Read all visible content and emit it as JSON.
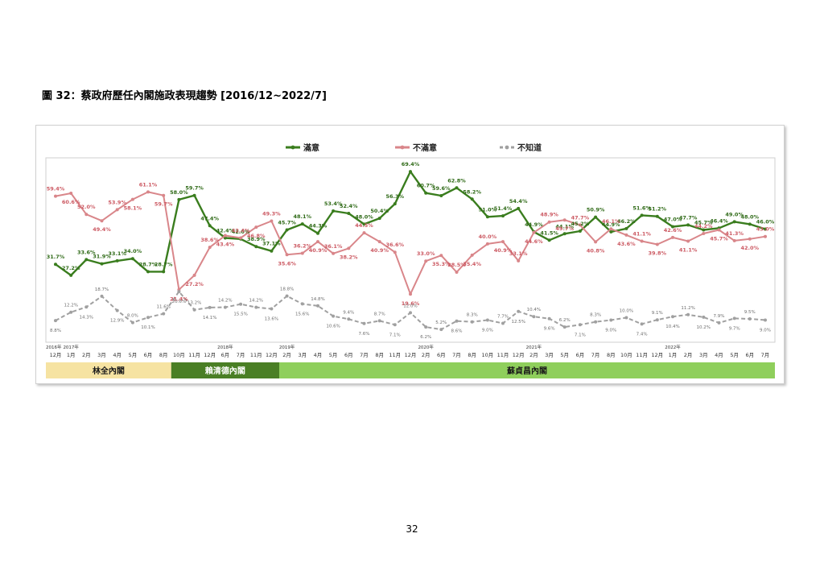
{
  "page_title": "圖 32：蔡政府歷任內閣施政表現趨勢  [2016/12~2022/7]",
  "page_number": "32",
  "colors": {
    "satisfied": "#3a7d1e",
    "dissatisfied": "#d9868a",
    "unknown": "#a0a0a0",
    "cabinet_lin": "#f6e3a2",
    "cabinet_lai": "#4a7f25",
    "cabinet_su": "#8fcf5c"
  },
  "chart_data": {
    "type": "line",
    "legend_position": "top",
    "grid": false,
    "ylim": [
      0,
      75
    ],
    "x": [
      "12月",
      "1月",
      "2月",
      "3月",
      "4月",
      "5月",
      "6月",
      "8月",
      "10月",
      "11月",
      "12月",
      "6月",
      "7月",
      "11月",
      "12月",
      "2月",
      "3月",
      "4月",
      "5月",
      "6月",
      "7月",
      "8月",
      "11月",
      "12月",
      "2月",
      "6月",
      "7月",
      "8月",
      "10月",
      "11月",
      "12月",
      "2月",
      "3月",
      "5月",
      "6月",
      "7月",
      "8月",
      "10月",
      "11月",
      "12月",
      "1月",
      "2月",
      "3月",
      "4月",
      "5月",
      "6月",
      "7月"
    ],
    "year_labels": [
      {
        "index": 0,
        "label": "2016年"
      },
      {
        "index": 1,
        "label": "2017年"
      },
      {
        "index": 11,
        "label": "2018年"
      },
      {
        "index": 15,
        "label": "2019年"
      },
      {
        "index": 24,
        "label": "2020年"
      },
      {
        "index": 31,
        "label": "2021年"
      },
      {
        "index": 40,
        "label": "2022年"
      }
    ],
    "series": [
      {
        "name": "滿意",
        "key": "satisfied",
        "values": [
          31.7,
          27.2,
          33.6,
          31.9,
          33.1,
          34.0,
          28.7,
          28.7,
          58.0,
          59.7,
          47.4,
          42.4,
          42.0,
          38.9,
          37.1,
          45.7,
          48.1,
          44.3,
          53.4,
          52.4,
          48.0,
          50.4,
          56.3,
          69.4,
          60.7,
          59.6,
          62.8,
          58.2,
          51.0,
          51.4,
          54.4,
          44.9,
          41.5,
          44.1,
          45.2,
          50.9,
          44.9,
          46.2,
          51.6,
          51.2,
          47.0,
          47.7,
          45.7,
          46.4,
          49.0,
          48.0,
          46.0
        ]
      },
      {
        "name": "不滿意",
        "key": "dissatisfied",
        "values": [
          59.4,
          60.6,
          52.0,
          49.4,
          53.9,
          58.1,
          61.1,
          59.7,
          21.4,
          27.2,
          38.6,
          43.4,
          42.4,
          46.8,
          49.3,
          35.6,
          36.2,
          40.9,
          36.1,
          38.2,
          44.5,
          40.9,
          36.6,
          19.6,
          33.0,
          35.3,
          28.5,
          35.4,
          40.0,
          40.9,
          33.1,
          44.6,
          48.9,
          49.7,
          47.7,
          40.8,
          46.1,
          43.6,
          41.1,
          39.8,
          42.6,
          41.1,
          44.2,
          45.7,
          41.3,
          42.0,
          43.0
        ]
      },
      {
        "name": "不知道",
        "key": "unknown",
        "values": [
          8.8,
          12.2,
          14.3,
          18.7,
          12.9,
          8.0,
          10.1,
          11.6,
          20.6,
          13.2,
          14.1,
          14.2,
          15.5,
          14.2,
          13.6,
          18.8,
          15.6,
          14.8,
          10.6,
          9.4,
          7.6,
          8.7,
          7.1,
          12.0,
          6.2,
          5.2,
          8.6,
          8.3,
          9.0,
          7.7,
          12.5,
          10.4,
          9.6,
          6.2,
          7.1,
          8.3,
          9.0,
          10.0,
          7.4,
          9.1,
          10.4,
          11.2,
          10.2,
          7.9,
          9.7,
          9.5,
          9.0
        ]
      }
    ],
    "cabinets": [
      {
        "name": "林全內閣",
        "key": "cabinet_lin",
        "start": 0,
        "end": 7
      },
      {
        "name": "賴清德內閣",
        "key": "cabinet_lai",
        "start": 8,
        "end": 14
      },
      {
        "name": "蘇貞昌內閣",
        "key": "cabinet_su",
        "start": 15,
        "end": 46
      }
    ]
  }
}
